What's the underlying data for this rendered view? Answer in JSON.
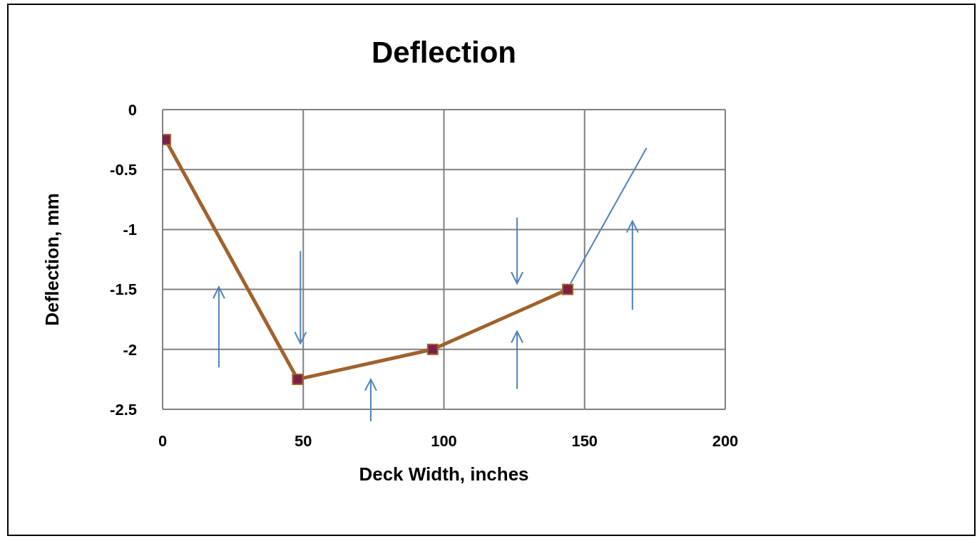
{
  "chart_data": {
    "type": "line",
    "title": "Deflection",
    "xlabel": "Deck Width, inches",
    "ylabel": "Deflection, mm",
    "x": [
      1,
      48,
      96,
      144
    ],
    "series": [
      {
        "color": "#a0622d",
        "values": [
          -0.25,
          -2.25,
          -2.0,
          -1.5
        ]
      }
    ],
    "xlim": [
      0,
      200
    ],
    "xticks": [
      0,
      50,
      100,
      150,
      200
    ],
    "ylim": [
      -2.5,
      0
    ],
    "yticks": [
      -2.5,
      -2,
      -1.5,
      -1,
      -0.5,
      0
    ],
    "grid": true,
    "marker": "square",
    "line_style": "solid"
  }
}
